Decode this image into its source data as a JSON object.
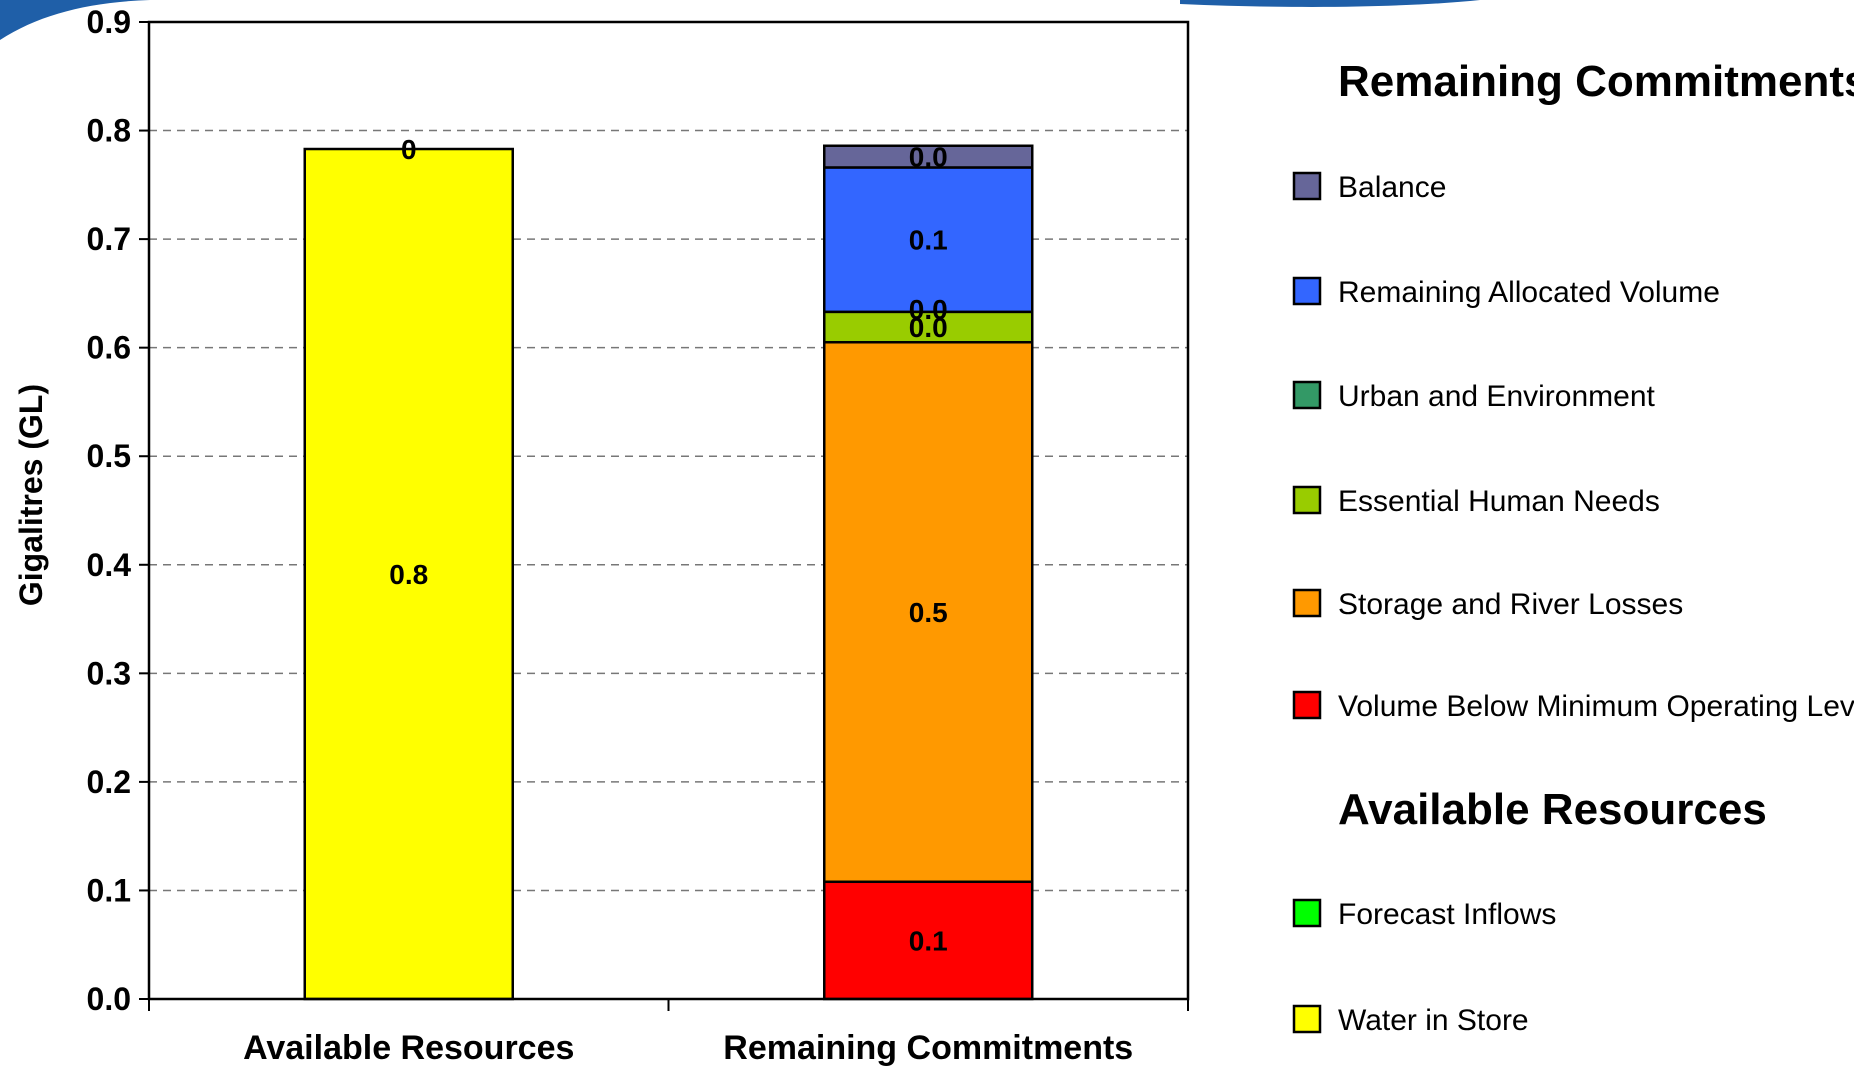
{
  "chart_data": {
    "type": "bar",
    "stacked": true,
    "categories": [
      "Available Resources",
      "Remaining Commitments"
    ],
    "ylabel": "Gigalitres (GL)",
    "ylim": [
      0,
      0.9
    ],
    "yticks": [
      "0.0",
      "0.1",
      "0.2",
      "0.3",
      "0.4",
      "0.5",
      "0.6",
      "0.7",
      "0.8",
      "0.9"
    ],
    "grid": true,
    "legend_position": "right",
    "bars": [
      {
        "category": "Available Resources",
        "segments": [
          {
            "name": "Water in Store",
            "value": 0.783,
            "label": "0.8",
            "color": "#FFFF00"
          },
          {
            "name": "Forecast Inflows",
            "value": 0.0,
            "label": "0",
            "color": "#00FF00"
          }
        ]
      },
      {
        "category": "Remaining Commitments",
        "segments": [
          {
            "name": "Volume Below Minimum Operating Level",
            "value": 0.108,
            "label": "0.1",
            "color": "#FF0000"
          },
          {
            "name": "Storage and River Losses",
            "value": 0.497,
            "label": "0.5",
            "color": "#FF9900"
          },
          {
            "name": "Essential Human Needs",
            "value": 0.028,
            "label": "0.0",
            "color": "#99CC00"
          },
          {
            "name": "Urban and Environment",
            "value": 0.0,
            "label": "0.0",
            "color": "#339966"
          },
          {
            "name": "Remaining Allocated Volume",
            "value": 0.133,
            "label": "0.1",
            "color": "#3366FF"
          },
          {
            "name": "Balance",
            "value": 0.02,
            "label": "0.0",
            "color": "#666699"
          }
        ]
      }
    ],
    "legend_groups": [
      {
        "heading": "Remaining Commitments",
        "items": [
          {
            "name": "Balance",
            "color": "#666699"
          },
          {
            "name": "Remaining Allocated Volume",
            "color": "#3366FF"
          },
          {
            "name": "Urban and Environment",
            "color": "#339966"
          },
          {
            "name": "Essential Human Needs",
            "color": "#99CC00"
          },
          {
            "name": "Storage and River Losses",
            "color": "#FF9900"
          },
          {
            "name": "Volume Below Minimum Operating Level",
            "color": "#FF0000"
          }
        ]
      },
      {
        "heading": "Available Resources",
        "items": [
          {
            "name": "Forecast Inflows",
            "color": "#00FF00"
          },
          {
            "name": "Water in Store",
            "color": "#FFFF00"
          }
        ]
      }
    ]
  },
  "colors": {
    "header_swoosh": "#1F5FA8"
  }
}
